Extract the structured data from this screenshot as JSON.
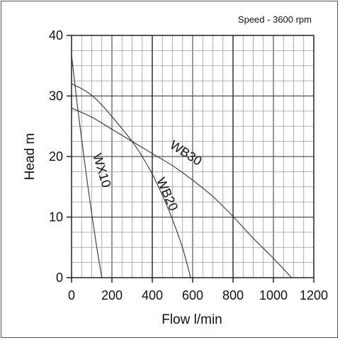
{
  "chart_data": {
    "type": "line",
    "annotation": "Speed - 3600 rpm",
    "xlabel": "Flow l/min",
    "ylabel": "Head m",
    "xlim": [
      0,
      1200
    ],
    "ylim": [
      0,
      40
    ],
    "x_ticks": [
      0,
      200,
      400,
      600,
      800,
      1000,
      1200
    ],
    "y_ticks": [
      0,
      10,
      20,
      30,
      40
    ],
    "grid": true,
    "series": [
      {
        "name": "WX10",
        "x": [
          0,
          25,
          50,
          75,
          100,
          125,
          150
        ],
        "y": [
          36.8,
          29.5,
          22.8,
          16.5,
          10.5,
          5,
          0
        ]
      },
      {
        "name": "WB20",
        "x": [
          0,
          50,
          100,
          150,
          200,
          250,
          300,
          350,
          400,
          450,
          500,
          550,
          590
        ],
        "y": [
          32,
          31.2,
          30.1,
          28.5,
          26.6,
          24.6,
          22.5,
          20,
          17.1,
          13.6,
          9.6,
          4.9,
          0
        ]
      },
      {
        "name": "WB30",
        "x": [
          0,
          100,
          200,
          300,
          400,
          500,
          600,
          700,
          800,
          900,
          1000,
          1090
        ],
        "y": [
          28,
          26.5,
          24.5,
          22.5,
          20.5,
          18.5,
          16.1,
          13.4,
          10.1,
          6.5,
          3.2,
          0
        ]
      }
    ]
  }
}
